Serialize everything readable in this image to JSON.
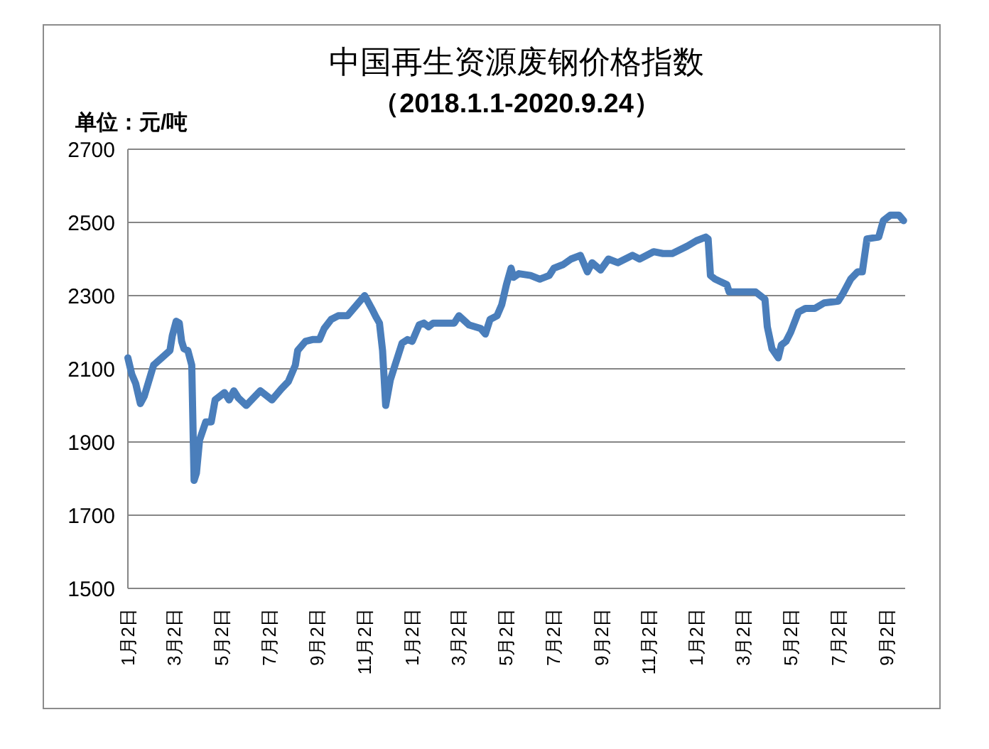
{
  "chart_data": {
    "type": "line",
    "title": "中国再生资源废钢价格指数",
    "subtitle": "（2018.1.1-2020.9.24）",
    "ylabel": "单位：元/吨",
    "x": [
      "2018-01-02",
      "2018-01-07",
      "2018-01-12",
      "2018-01-18",
      "2018-01-23",
      "2018-02-04",
      "2018-02-25",
      "2018-02-28",
      "2018-03-05",
      "2018-03-09",
      "2018-03-12",
      "2018-03-15",
      "2018-03-20",
      "2018-03-25",
      "2018-03-28",
      "2018-03-31",
      "2018-04-04",
      "2018-04-12",
      "2018-04-19",
      "2018-04-24",
      "2018-05-06",
      "2018-05-12",
      "2018-05-18",
      "2018-05-24",
      "2018-06-03",
      "2018-06-21",
      "2018-07-06",
      "2018-07-18",
      "2018-07-27",
      "2018-08-05",
      "2018-08-08",
      "2018-08-18",
      "2018-08-27",
      "2018-09-05",
      "2018-09-11",
      "2018-09-20",
      "2018-09-29",
      "2018-10-11",
      "2018-11-02",
      "2018-11-11",
      "2018-11-17",
      "2018-11-21",
      "2018-11-25",
      "2018-11-29",
      "2018-12-05",
      "2018-12-11",
      "2018-12-20",
      "2018-12-27",
      "2019-01-02",
      "2019-01-11",
      "2019-01-17",
      "2019-01-23",
      "2019-01-29",
      "2019-02-25",
      "2019-03-03",
      "2019-03-16",
      "2019-03-31",
      "2019-04-06",
      "2019-04-12",
      "2019-04-21",
      "2019-04-27",
      "2019-05-03",
      "2019-05-09",
      "2019-05-12",
      "2019-05-19",
      "2019-06-03",
      "2019-06-15",
      "2019-06-27",
      "2019-07-03",
      "2019-07-15",
      "2019-07-25",
      "2019-08-06",
      "2019-08-15",
      "2019-08-21",
      "2019-09-01",
      "2019-09-11",
      "2019-09-23",
      "2019-10-12",
      "2019-10-21",
      "2019-11-08",
      "2019-11-20",
      "2019-12-02",
      "2019-12-21",
      "2020-01-02",
      "2020-01-14",
      "2020-01-17",
      "2020-01-20",
      "2020-01-26",
      "2020-02-10",
      "2020-02-13",
      "2020-03-18",
      "2020-03-30",
      "2020-04-02",
      "2020-04-08",
      "2020-04-16",
      "2020-04-20",
      "2020-04-26",
      "2020-05-02",
      "2020-05-12",
      "2020-05-21",
      "2020-06-02",
      "2020-06-14",
      "2020-07-02",
      "2020-07-08",
      "2020-07-18",
      "2020-07-27",
      "2020-08-02",
      "2020-08-08",
      "2020-08-23",
      "2020-08-29",
      "2020-09-07",
      "2020-09-18",
      "2020-09-24"
    ],
    "series": [
      {
        "color": "#4a7ebb",
        "values": [
          2130,
          2085,
          2060,
          2005,
          2025,
          2110,
          2150,
          2190,
          2230,
          2225,
          2175,
          2155,
          2150,
          2110,
          1795,
          1815,
          1905,
          1955,
          1955,
          2015,
          2035,
          2015,
          2040,
          2020,
          2000,
          2040,
          2015,
          2045,
          2065,
          2110,
          2150,
          2175,
          2180,
          2180,
          2210,
          2235,
          2245,
          2245,
          2300,
          2265,
          2240,
          2225,
          2150,
          2000,
          2070,
          2110,
          2170,
          2180,
          2175,
          2220,
          2225,
          2215,
          2225,
          2225,
          2245,
          2220,
          2210,
          2195,
          2235,
          2245,
          2275,
          2330,
          2375,
          2350,
          2360,
          2355,
          2345,
          2355,
          2375,
          2385,
          2400,
          2410,
          2365,
          2390,
          2370,
          2400,
          2390,
          2410,
          2400,
          2420,
          2415,
          2415,
          2435,
          2450,
          2460,
          2455,
          2355,
          2345,
          2330,
          2310,
          2310,
          2290,
          2215,
          2155,
          2130,
          2165,
          2175,
          2200,
          2255,
          2265,
          2265,
          2280,
          2285,
          2305,
          2345,
          2365,
          2365,
          2455,
          2460,
          2505,
          2520,
          2520,
          2505
        ]
      }
    ],
    "xlim": [
      "2018-01-02",
      "2020-09-26"
    ],
    "xticks": [
      {
        "value": "2018-01-02",
        "label": "1月2日"
      },
      {
        "value": "2018-03-02",
        "label": "3月2日"
      },
      {
        "value": "2018-05-02",
        "label": "5月2日"
      },
      {
        "value": "2018-07-02",
        "label": "7月2日"
      },
      {
        "value": "2018-09-02",
        "label": "9月2日"
      },
      {
        "value": "2018-11-02",
        "label": "11月2日"
      },
      {
        "value": "2019-01-02",
        "label": "1月2日"
      },
      {
        "value": "2019-03-02",
        "label": "3月2日"
      },
      {
        "value": "2019-05-02",
        "label": "5月2日"
      },
      {
        "value": "2019-07-02",
        "label": "7月2日"
      },
      {
        "value": "2019-09-02",
        "label": "9月2日"
      },
      {
        "value": "2019-11-02",
        "label": "11月2日"
      },
      {
        "value": "2020-01-02",
        "label": "1月2日"
      },
      {
        "value": "2020-03-02",
        "label": "3月2日"
      },
      {
        "value": "2020-05-02",
        "label": "5月2日"
      },
      {
        "value": "2020-07-02",
        "label": "7月2日"
      },
      {
        "value": "2020-09-02",
        "label": "9月2日"
      }
    ],
    "ylim": [
      1500,
      2700
    ],
    "yticks": [
      1500,
      1700,
      1900,
      2100,
      2300,
      2500,
      2700
    ],
    "grid": "y",
    "line_style": "solid"
  }
}
